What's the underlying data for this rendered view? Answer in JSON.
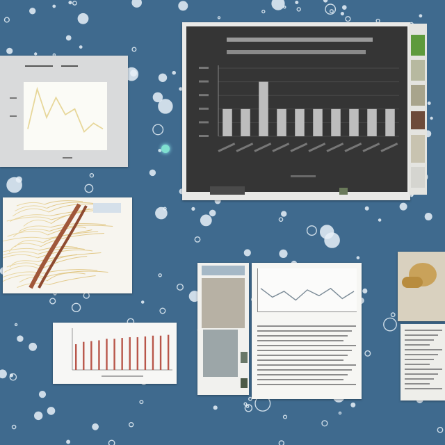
{
  "colors": {
    "background": "#3f6a8e",
    "chart_background": "#353535",
    "chart_bar": "#bdbdbd",
    "wave_line": "#e7d79a",
    "stem": "#a0573a",
    "bar_red": "#b8564a",
    "gold": "#c9a25a",
    "green_thumb": "#5e9a3c"
  },
  "decorations": {
    "type": "bubbles",
    "count": 260
  },
  "chart_data": {
    "type": "bar",
    "categories": [
      "",
      "",
      "",
      "",
      "",
      "",
      "",
      "",
      "",
      ""
    ],
    "values": [
      2,
      2,
      4,
      2,
      2,
      2,
      2,
      2,
      2,
      2
    ],
    "ylim": [
      0,
      5
    ],
    "grid": true
  },
  "mini_bar_chart": {
    "values": [
      33,
      36,
      37,
      38,
      40,
      40,
      41,
      42,
      42,
      43,
      44,
      44,
      45
    ]
  },
  "line_sketch": {
    "values": [
      0.3,
      1.0,
      0.5,
      0.85,
      0.55,
      0.65,
      0.25,
      0.4,
      0.3
    ]
  },
  "wave_chart": {
    "values": [
      0.6,
      0.3,
      0.5,
      0.2,
      0.55,
      0.35,
      0.6,
      0.25,
      0.5
    ]
  }
}
